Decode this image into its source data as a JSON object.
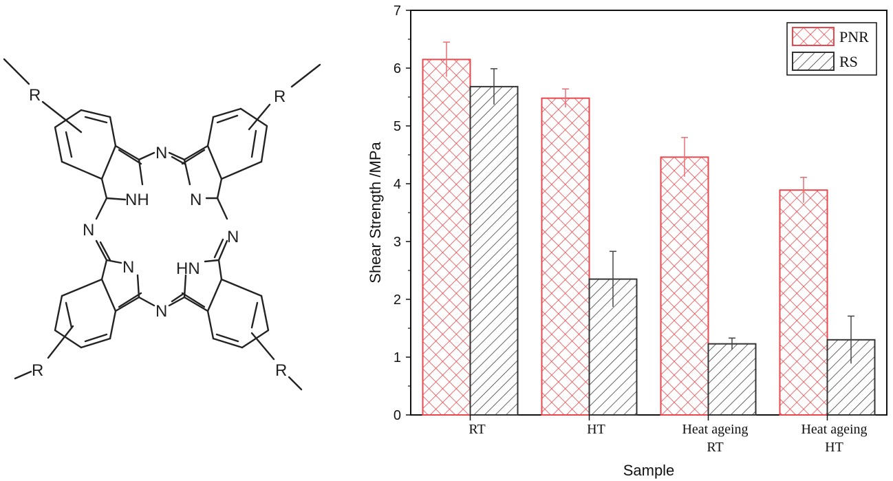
{
  "molecule": {
    "atom_labels": {
      "r_top_left": "R",
      "r_top_right": "R",
      "r_bottom_left": "R",
      "r_bottom_right": "R",
      "n_top": "N",
      "n_left": "N",
      "n_right": "N",
      "n_bottom": "N",
      "nh_top_left": "NH",
      "n_top_right": "N",
      "n_bottom_left": "N",
      "hn_bottom_right": "HN"
    }
  },
  "chart_data": {
    "type": "bar",
    "categories": [
      "RT",
      "HT",
      "Heat ageing RT",
      "Heat ageing HT"
    ],
    "category_lines": [
      [
        "RT"
      ],
      [
        "HT"
      ],
      [
        "Heat ageing",
        "RT"
      ],
      [
        "Heat ageing",
        "HT"
      ]
    ],
    "series": [
      {
        "name": "PNR",
        "values": [
          6.15,
          5.48,
          4.46,
          3.89
        ],
        "errors": [
          0.3,
          0.16,
          0.34,
          0.22
        ],
        "color": "#e8484d",
        "pattern": "crosshatch"
      },
      {
        "name": "RS",
        "values": [
          5.68,
          2.35,
          1.23,
          1.3
        ],
        "errors": [
          0.31,
          0.48,
          0.1,
          0.41
        ],
        "color": "#555555",
        "pattern": "diagonal"
      }
    ],
    "xlabel": "Sample",
    "ylabel": "Shear Strength /MPa",
    "ylim": [
      0,
      7
    ],
    "yticks": [
      0,
      1,
      2,
      3,
      4,
      5,
      6,
      7
    ],
    "legend_position": "top-right",
    "grid": false
  }
}
